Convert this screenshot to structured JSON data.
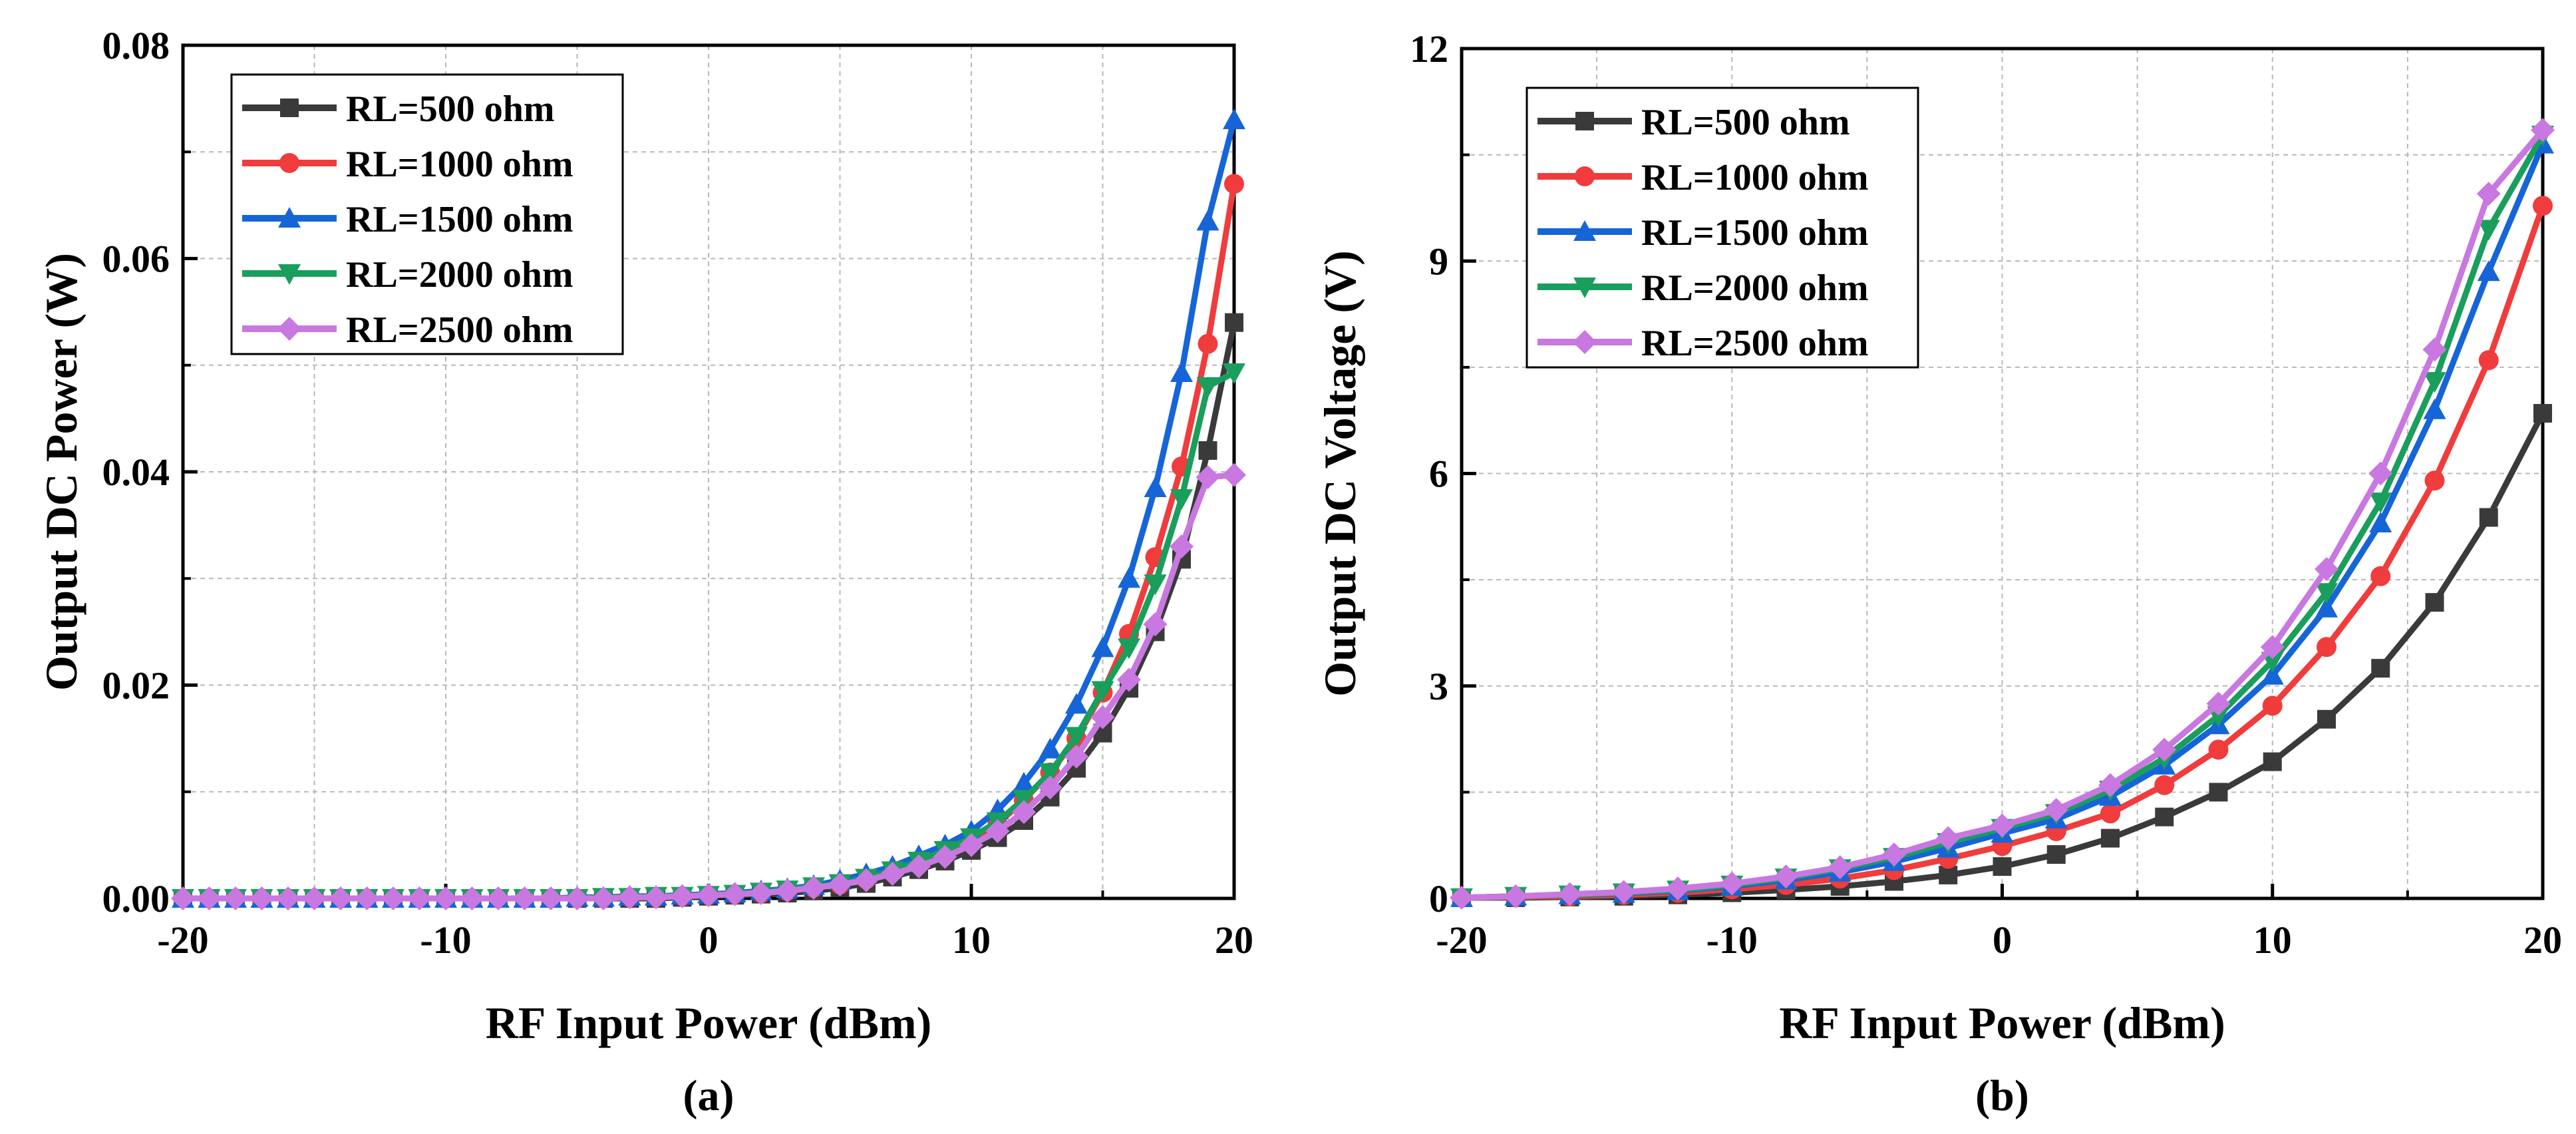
{
  "chart_data": [
    {
      "type": "line",
      "panel_label": "(a)",
      "xlabel": "RF Input Power (dBm)",
      "ylabel": "Output DC Power (W)",
      "xlim": [
        -20,
        20
      ],
      "ylim": [
        0,
        0.08
      ],
      "x_ticks": [
        "-20",
        "-10",
        "0",
        "10",
        "20"
      ],
      "y_ticks": [
        "0.00",
        "0.02",
        "0.04",
        "0.06",
        "0.08"
      ],
      "grid": true,
      "legend_position": "top-left",
      "x": [
        -20,
        -19,
        -18,
        -17,
        -16,
        -15,
        -14,
        -13,
        -12,
        -11,
        -10,
        -9,
        -8,
        -7,
        -6,
        -5,
        -4,
        -3,
        -2,
        -1,
        0,
        1,
        2,
        3,
        4,
        5,
        6,
        7,
        8,
        9,
        10,
        11,
        12,
        13,
        14,
        15,
        16,
        17,
        18,
        19,
        20
      ],
      "series": [
        {
          "name": "RL=500 ohm",
          "color": "#3a3a3a",
          "marker": "square",
          "values": [
            0,
            0,
            0,
            0,
            0,
            0,
            0,
            0,
            0,
            0,
            0,
            0,
            0,
            0,
            0,
            0,
            0,
            0,
            0,
            0.0001,
            0.0002,
            0.0003,
            0.0004,
            0.0005,
            0.0007,
            0.001,
            0.0014,
            0.002,
            0.0027,
            0.0035,
            0.0045,
            0.0057,
            0.0073,
            0.0095,
            0.0122,
            0.0155,
            0.0197,
            0.025,
            0.0318,
            0.042,
            0.054
          ]
        },
        {
          "name": "RL=1000 ohm",
          "color": "#f03c3c",
          "marker": "circle",
          "values": [
            0,
            0,
            0,
            0,
            0,
            0,
            0,
            0,
            0,
            0,
            0,
            0,
            0,
            0,
            0,
            0,
            0,
            0.0001,
            0.0001,
            0.0002,
            0.0003,
            0.0004,
            0.0005,
            0.0007,
            0.001,
            0.0013,
            0.0018,
            0.0025,
            0.0033,
            0.0043,
            0.0055,
            0.007,
            0.0092,
            0.0118,
            0.015,
            0.0193,
            0.0248,
            0.032,
            0.0405,
            0.052,
            0.067
          ]
        },
        {
          "name": "RL=1500 ohm",
          "color": "#1565d8",
          "marker": "triangle-up",
          "values": [
            0,
            0,
            0,
            0,
            0,
            0,
            0,
            0,
            0,
            0,
            0,
            0,
            0,
            0,
            0,
            0.0001,
            0.0001,
            0.0002,
            0.0002,
            0.0003,
            0.0004,
            0.0005,
            0.0007,
            0.0009,
            0.0012,
            0.0017,
            0.0023,
            0.003,
            0.004,
            0.005,
            0.0063,
            0.0083,
            0.0108,
            0.014,
            0.0182,
            0.0235,
            0.03,
            0.0385,
            0.0493,
            0.0635,
            0.073
          ]
        },
        {
          "name": "RL=2000 ohm",
          "color": "#1a9e5c",
          "marker": "triangle-down",
          "values": [
            0,
            0,
            0,
            0,
            0,
            0,
            0,
            0,
            0,
            0,
            0,
            0,
            0,
            0,
            0,
            0,
            0.0001,
            0.0001,
            0.0002,
            0.0002,
            0.0003,
            0.0004,
            0.0006,
            0.0008,
            0.0011,
            0.0014,
            0.0019,
            0.0026,
            0.0035,
            0.0045,
            0.0057,
            0.0072,
            0.0093,
            0.0118,
            0.0152,
            0.0195,
            0.0235,
            0.0295,
            0.0375,
            0.048,
            0.0493
          ]
        },
        {
          "name": "RL=2500 ohm",
          "color": "#c878e0",
          "marker": "diamond",
          "values": [
            0,
            0,
            0,
            0,
            0,
            0,
            0,
            0,
            0,
            0,
            0,
            0,
            0,
            0,
            0,
            0,
            0,
            0.0001,
            0.0001,
            0.0002,
            0.0003,
            0.0004,
            0.0005,
            0.0007,
            0.001,
            0.0013,
            0.0017,
            0.0023,
            0.003,
            0.0039,
            0.005,
            0.0063,
            0.0081,
            0.0104,
            0.0133,
            0.017,
            0.0205,
            0.0257,
            0.033,
            0.0395,
            0.0397
          ]
        }
      ]
    },
    {
      "type": "line",
      "panel_label": "(b)",
      "xlabel": "RF Input Power (dBm)",
      "ylabel": "Output DC Voltage (V)",
      "xlim": [
        -20,
        20
      ],
      "ylim": [
        0,
        12
      ],
      "x_ticks": [
        "-20",
        "-10",
        "0",
        "10",
        "20"
      ],
      "y_ticks": [
        "0",
        "3",
        "6",
        "9",
        "12"
      ],
      "grid": true,
      "legend_position": "top-left",
      "x": [
        -20,
        -18,
        -16,
        -14,
        -12,
        -10,
        -8,
        -6,
        -4,
        -2,
        0,
        2,
        4,
        6,
        8,
        10,
        12,
        14,
        16,
        18,
        20
      ],
      "series": [
        {
          "name": "RL=500 ohm",
          "color": "#3a3a3a",
          "marker": "square",
          "values": [
            0.01,
            0.01,
            0.02,
            0.03,
            0.05,
            0.08,
            0.12,
            0.17,
            0.24,
            0.33,
            0.45,
            0.62,
            0.85,
            1.15,
            1.5,
            1.93,
            2.53,
            3.25,
            4.18,
            5.38,
            6.85
          ]
        },
        {
          "name": "RL=1000 ohm",
          "color": "#f03c3c",
          "marker": "circle",
          "values": [
            0.01,
            0.02,
            0.03,
            0.05,
            0.08,
            0.13,
            0.19,
            0.28,
            0.4,
            0.56,
            0.74,
            0.95,
            1.2,
            1.6,
            2.1,
            2.72,
            3.55,
            4.55,
            5.9,
            7.6,
            9.78
          ]
        },
        {
          "name": "RL=1500 ohm",
          "color": "#1565d8",
          "marker": "triangle-up",
          "values": [
            0.01,
            0.03,
            0.05,
            0.07,
            0.11,
            0.17,
            0.26,
            0.37,
            0.52,
            0.71,
            0.92,
            1.12,
            1.44,
            1.88,
            2.45,
            3.15,
            4.1,
            5.3,
            6.9,
            8.85,
            10.65
          ]
        },
        {
          "name": "RL=2000 ohm",
          "color": "#1a9e5c",
          "marker": "triangle-down",
          "values": [
            0.01,
            0.03,
            0.05,
            0.08,
            0.12,
            0.19,
            0.29,
            0.42,
            0.58,
            0.79,
            0.99,
            1.2,
            1.53,
            1.98,
            2.58,
            3.35,
            4.32,
            5.6,
            7.3,
            9.45,
            10.78
          ]
        },
        {
          "name": "RL=2500 ohm",
          "color": "#c878e0",
          "marker": "diamond",
          "values": [
            0.01,
            0.03,
            0.06,
            0.09,
            0.14,
            0.21,
            0.31,
            0.44,
            0.62,
            0.85,
            1.03,
            1.25,
            1.6,
            2.1,
            2.75,
            3.55,
            4.65,
            6.0,
            7.75,
            9.95,
            10.85
          ]
        }
      ]
    }
  ]
}
